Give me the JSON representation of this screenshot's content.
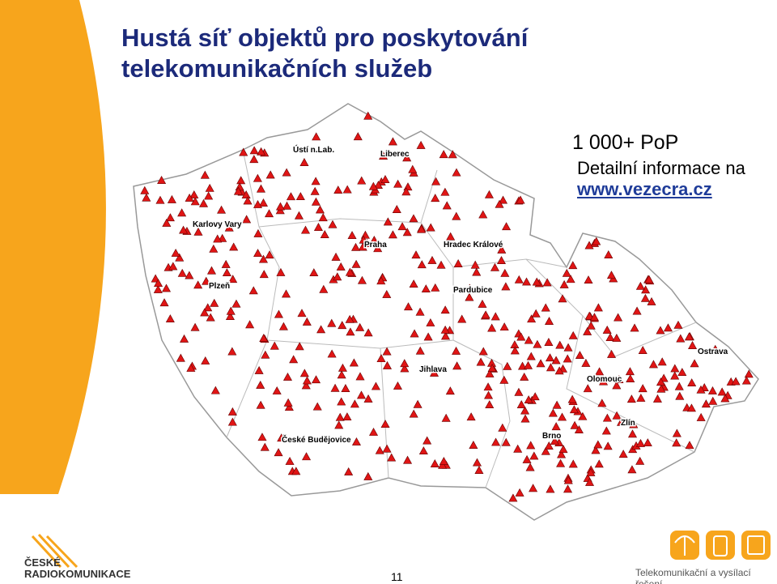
{
  "slide": {
    "title_lines": [
      "Hustá síť objektů pro poskytování",
      "telekomunikačních služeb"
    ],
    "callout": {
      "headline": "1 000+ PoP",
      "info": "Detailní informace na",
      "link": "www.vezecra.cz"
    },
    "map": {
      "cities": [
        "Ústí n.Lab.",
        "Liberec",
        "Karlovy Vary",
        "Praha",
        "Hradec Králové",
        "Plzeň",
        "Pardubice",
        "Ostrava",
        "Jihlava",
        "Olomouc",
        "Zlín",
        "Brno",
        "České Budějovice"
      ]
    },
    "footer": {
      "logo_lines": [
        "ČESKÉ",
        "RADIOKOMUNIKACE"
      ],
      "tagline": "Telekomunikační a vysílací řešení",
      "page_number": "11"
    }
  }
}
